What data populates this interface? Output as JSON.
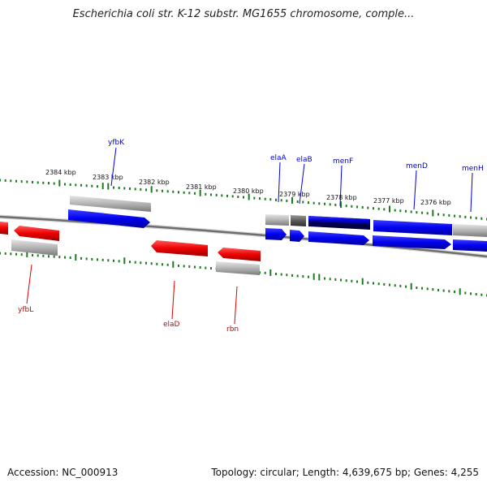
{
  "title": "Escherichia coli str. K-12 substr. MG1655 chromosome, comple...",
  "footer": {
    "accession": "Accession: NC_000913",
    "stats": "Topology: circular; Length: 4,639,675 bp; Genes: 4,255"
  },
  "colors": {
    "plus_strand": "#0000ee",
    "minus_strand": "#ee0000",
    "non_gene": "#a8a8a8",
    "tick": "#1e7a1e",
    "backbone": "#6e6e6e"
  },
  "tick_labels": [
    "2384 kbp",
    "2383 kbp",
    "2382 kbp",
    "2381 kbp",
    "2380 kbp",
    "2379 kbp",
    "2378 kbp",
    "2377 kbp",
    "2376 kbp"
  ],
  "genes": [
    {
      "name": "yfbK",
      "strand": "+"
    },
    {
      "name": "elaA",
      "strand": "+"
    },
    {
      "name": "elaB",
      "strand": "+"
    },
    {
      "name": "menF",
      "strand": "+"
    },
    {
      "name": "menD",
      "strand": "+"
    },
    {
      "name": "menH",
      "strand": "+"
    },
    {
      "name": "yfbL",
      "strand": "-"
    },
    {
      "name": "elaD",
      "strand": "-"
    },
    {
      "name": "rbn",
      "strand": "-"
    }
  ]
}
